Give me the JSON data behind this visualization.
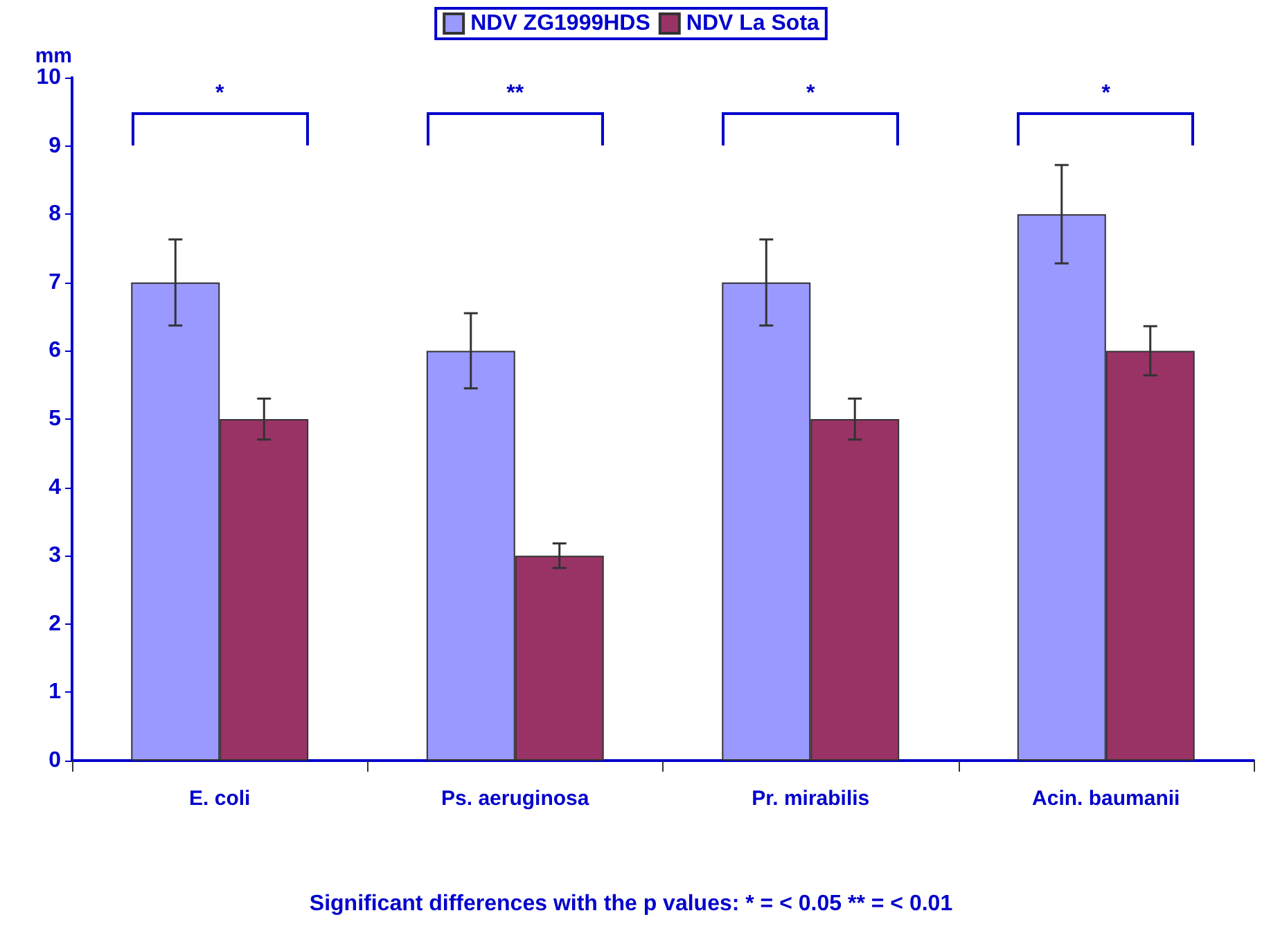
{
  "chart_data": {
    "type": "bar",
    "ylabel": "mm",
    "categories": [
      "E. coli",
      "Ps. aeruginosa",
      "Pr. mirabilis",
      "Acin. baumanii"
    ],
    "series": [
      {
        "name": "NDV ZG1999HDS",
        "color": "#9999ff",
        "values": [
          7,
          6,
          7,
          8
        ],
        "errors": [
          0.63,
          0.55,
          0.63,
          0.72
        ]
      },
      {
        "name": "NDV La Sota",
        "color": "#993366",
        "values": [
          5,
          3,
          5,
          6
        ],
        "errors": [
          0.3,
          0.18,
          0.3,
          0.36
        ]
      }
    ],
    "ylim": [
      0,
      10
    ],
    "yticks": [
      0,
      1,
      2,
      3,
      4,
      5,
      6,
      7,
      8,
      9,
      10
    ],
    "grid": false,
    "legend": "top",
    "annotations": [
      "*",
      "**",
      "*",
      "*",
      "Significant differences with the p values: * = < 0.05  ** = <  0.01"
    ]
  }
}
